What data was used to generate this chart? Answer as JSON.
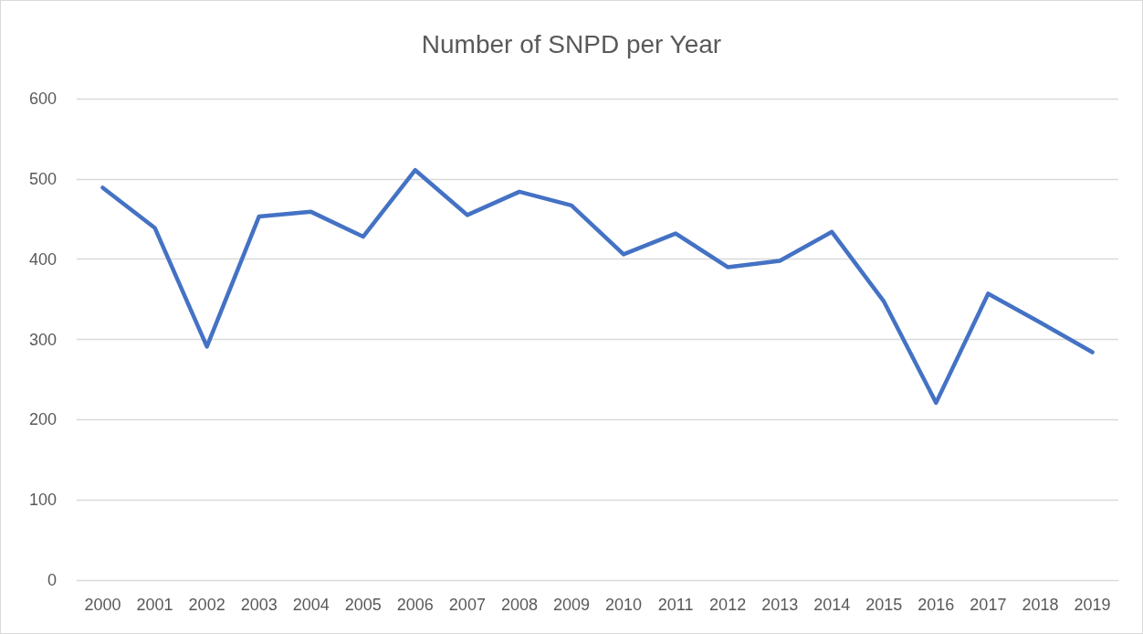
{
  "chart_data": {
    "type": "line",
    "title": "Number of SNPD per Year",
    "categories": [
      "2000",
      "2001",
      "2002",
      "2003",
      "2004",
      "2005",
      "2006",
      "2007",
      "2008",
      "2009",
      "2010",
      "2011",
      "2012",
      "2013",
      "2014",
      "2015",
      "2016",
      "2017",
      "2018",
      "2019"
    ],
    "series": [
      {
        "color": "#4472c4",
        "values": [
          489,
          439,
          291,
          453,
          459,
          428,
          511,
          455,
          484,
          467,
          406,
          432,
          390,
          398,
          434,
          347,
          221,
          357,
          321,
          284
        ]
      }
    ],
    "ylim": [
      0,
      600
    ],
    "yticks": [
      0,
      100,
      200,
      300,
      400,
      500,
      600
    ],
    "grid": "y",
    "marker": "none",
    "line_style": "solid"
  }
}
